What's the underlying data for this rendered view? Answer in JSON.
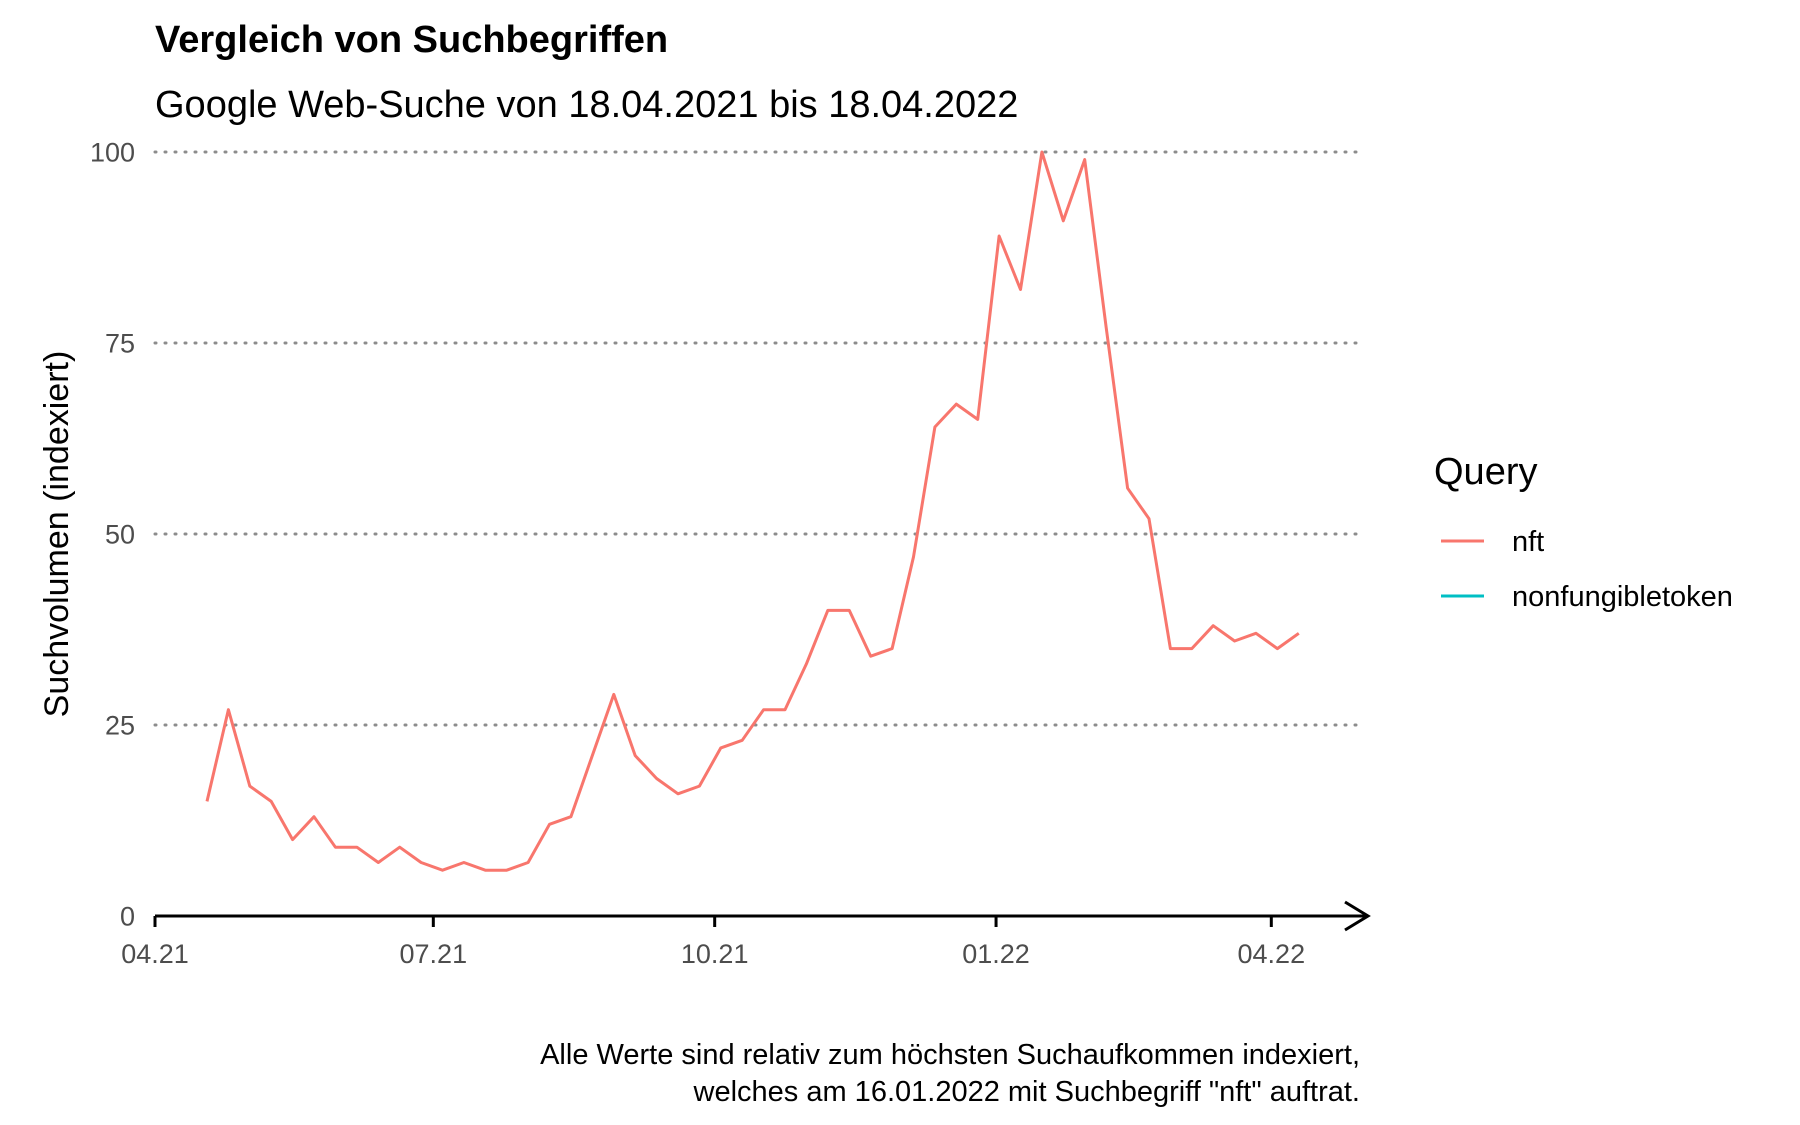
{
  "chart_data": {
    "type": "line",
    "title": "Vergleich von Suchbegriffen",
    "subtitle": "Google Web-Suche von 18.04.2021 bis 18.04.2022",
    "ylabel": "Suchvolumen (indexiert)",
    "xlabel": "",
    "caption_lines": [
      "Alle Werte sind relativ zum höchsten Suchaufkommen indexiert,",
      "welches am 16.01.2022 mit Suchbegriff \"nft\" auftrat."
    ],
    "ylim": [
      0,
      100
    ],
    "y_ticks": [
      0,
      25,
      50,
      75,
      100
    ],
    "xlim": [
      "2021-04-01",
      "2022-04-30"
    ],
    "x_ticks": [
      {
        "date": "2021-04-01",
        "label": "04.21"
      },
      {
        "date": "2021-07-01",
        "label": "07.21"
      },
      {
        "date": "2021-10-01",
        "label": "10.21"
      },
      {
        "date": "2022-01-01",
        "label": "01.22"
      },
      {
        "date": "2022-04-01",
        "label": "04.22"
      }
    ],
    "grid": "horizontal dotted",
    "legend": {
      "title": "Query",
      "position": "right"
    },
    "series": [
      {
        "name": "nft",
        "color": "#F8766D",
        "points": [
          [
            "2021-04-18",
            15
          ],
          [
            "2021-04-25",
            27
          ],
          [
            "2021-05-02",
            17
          ],
          [
            "2021-05-09",
            15
          ],
          [
            "2021-05-16",
            10
          ],
          [
            "2021-05-23",
            13
          ],
          [
            "2021-05-30",
            9
          ],
          [
            "2021-06-06",
            9
          ],
          [
            "2021-06-13",
            7
          ],
          [
            "2021-06-20",
            9
          ],
          [
            "2021-06-27",
            7
          ],
          [
            "2021-07-04",
            6
          ],
          [
            "2021-07-11",
            7
          ],
          [
            "2021-07-18",
            6
          ],
          [
            "2021-07-25",
            6
          ],
          [
            "2021-08-01",
            7
          ],
          [
            "2021-08-08",
            12
          ],
          [
            "2021-08-15",
            13
          ],
          [
            "2021-08-22",
            21
          ],
          [
            "2021-08-29",
            29
          ],
          [
            "2021-09-05",
            21
          ],
          [
            "2021-09-12",
            18
          ],
          [
            "2021-09-19",
            16
          ],
          [
            "2021-09-26",
            17
          ],
          [
            "2021-10-03",
            22
          ],
          [
            "2021-10-10",
            23
          ],
          [
            "2021-10-17",
            27
          ],
          [
            "2021-10-24",
            27
          ],
          [
            "2021-10-31",
            33
          ],
          [
            "2021-11-07",
            40
          ],
          [
            "2021-11-14",
            40
          ],
          [
            "2021-11-21",
            34
          ],
          [
            "2021-11-28",
            35
          ],
          [
            "2021-12-05",
            47
          ],
          [
            "2021-12-12",
            64
          ],
          [
            "2021-12-19",
            67
          ],
          [
            "2021-12-26",
            65
          ],
          [
            "2022-01-02",
            89
          ],
          [
            "2022-01-09",
            82
          ],
          [
            "2022-01-16",
            100
          ],
          [
            "2022-01-23",
            91
          ],
          [
            "2022-01-30",
            99
          ],
          [
            "2022-02-06",
            77
          ],
          [
            "2022-02-13",
            56
          ],
          [
            "2022-02-20",
            52
          ],
          [
            "2022-02-27",
            35
          ],
          [
            "2022-03-06",
            35
          ],
          [
            "2022-03-13",
            38
          ],
          [
            "2022-03-20",
            36
          ],
          [
            "2022-03-27",
            37
          ],
          [
            "2022-04-03",
            35
          ],
          [
            "2022-04-10",
            37
          ]
        ]
      },
      {
        "name": "nonfungibletoken",
        "color": "#00BFC4",
        "points": []
      }
    ]
  }
}
